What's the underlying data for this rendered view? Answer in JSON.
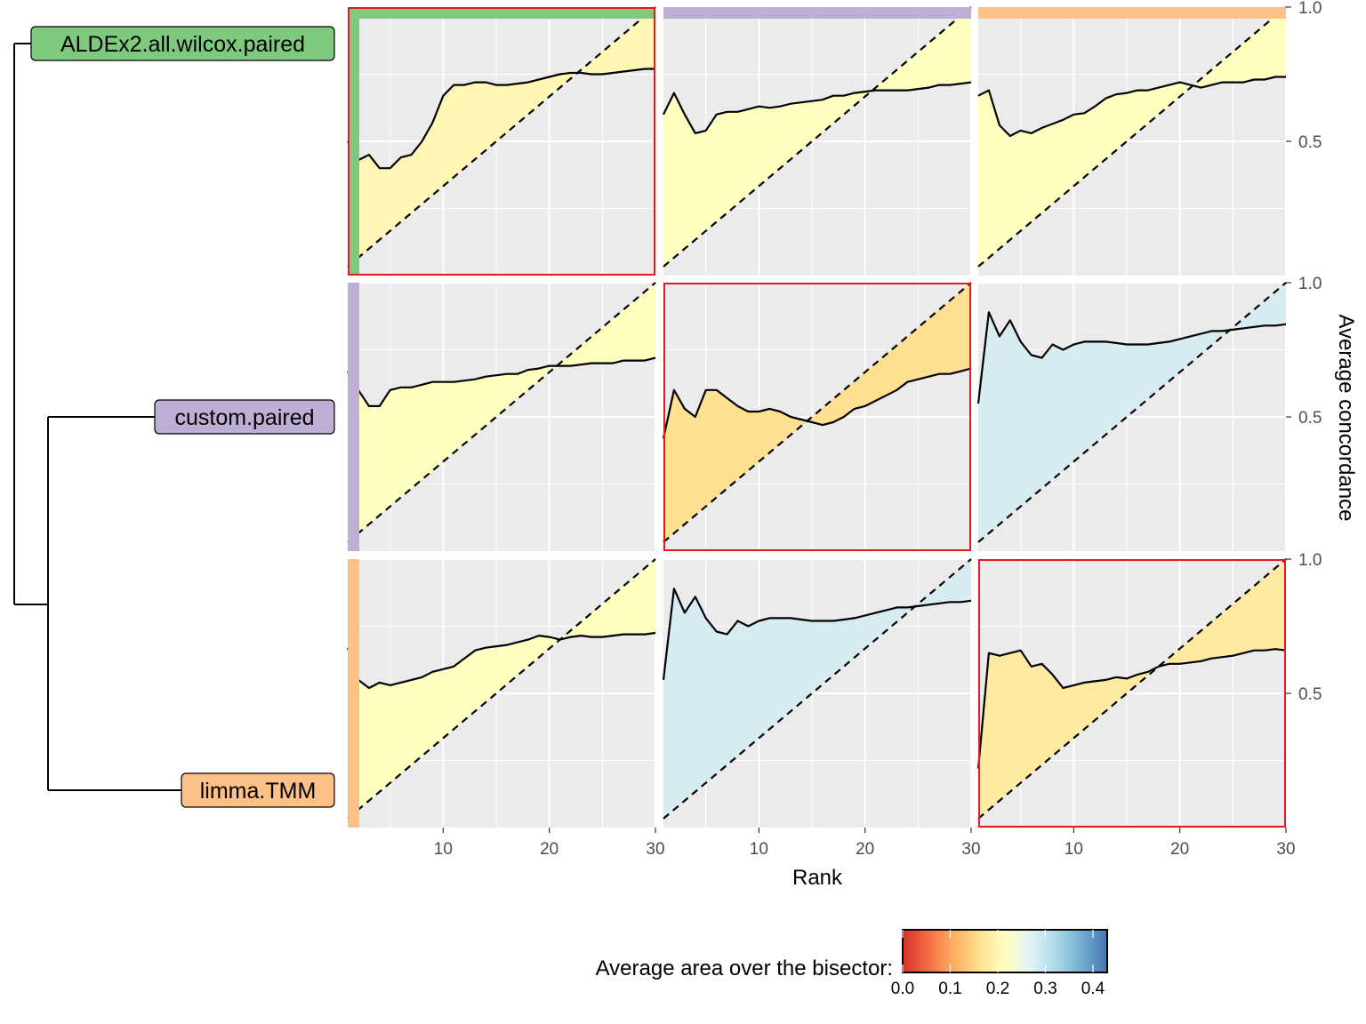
{
  "chart_data": {
    "type": "area",
    "title": "",
    "xlabel": "Rank",
    "ylabel": "Average concordance",
    "x_ticks": [
      10,
      20,
      30
    ],
    "y_ticks": [
      "0.5",
      "1.0"
    ],
    "xlim": [
      1,
      30
    ],
    "ylim": [
      0,
      1
    ],
    "grid": true,
    "y_axis_side": "right",
    "methods": [
      {
        "name": "ALDEx2.all.wilcox.paired",
        "color": "#7fc97f"
      },
      {
        "name": "custom.paired",
        "color": "#beaed4"
      },
      {
        "name": "limma.TMM",
        "color": "#fdc086"
      }
    ],
    "dendrogram": "custom.paired and limma.TMM cluster first, then join ALDEx2.all.wilcox.paired",
    "reference_line": "bisector y = x / 30 (dashed)",
    "panels": [
      {
        "row": 0,
        "col": 0,
        "diagonal": true,
        "fill": "#fff7b3",
        "y": [
          0.5,
          0.43,
          0.45,
          0.4,
          0.4,
          0.44,
          0.45,
          0.5,
          0.57,
          0.67,
          0.71,
          0.71,
          0.72,
          0.72,
          0.71,
          0.71,
          0.715,
          0.72,
          0.73,
          0.74,
          0.75,
          0.755,
          0.755,
          0.75,
          0.75,
          0.755,
          0.76,
          0.765,
          0.77,
          0.77
        ]
      },
      {
        "row": 0,
        "col": 1,
        "diagonal": false,
        "fill": "#ffffbf",
        "y": [
          0.6,
          0.68,
          0.6,
          0.53,
          0.54,
          0.6,
          0.61,
          0.61,
          0.62,
          0.63,
          0.625,
          0.63,
          0.64,
          0.645,
          0.65,
          0.655,
          0.67,
          0.67,
          0.68,
          0.685,
          0.69,
          0.69,
          0.69,
          0.69,
          0.695,
          0.7,
          0.71,
          0.71,
          0.715,
          0.72
        ]
      },
      {
        "row": 0,
        "col": 2,
        "diagonal": false,
        "fill": "#ffffbf",
        "y": [
          0.67,
          0.69,
          0.56,
          0.52,
          0.54,
          0.53,
          0.55,
          0.565,
          0.58,
          0.6,
          0.605,
          0.63,
          0.66,
          0.675,
          0.68,
          0.69,
          0.69,
          0.7,
          0.71,
          0.72,
          0.71,
          0.7,
          0.71,
          0.72,
          0.72,
          0.72,
          0.73,
          0.73,
          0.74,
          0.74
        ]
      },
      {
        "row": 1,
        "col": 0,
        "diagonal": false,
        "fill": "#ffffbf",
        "y": [
          0.67,
          0.6,
          0.54,
          0.54,
          0.6,
          0.61,
          0.61,
          0.62,
          0.63,
          0.63,
          0.63,
          0.635,
          0.64,
          0.65,
          0.655,
          0.66,
          0.66,
          0.675,
          0.68,
          0.69,
          0.69,
          0.69,
          0.695,
          0.7,
          0.7,
          0.7,
          0.71,
          0.71,
          0.71,
          0.72
        ]
      },
      {
        "row": 1,
        "col": 1,
        "diagonal": true,
        "fill": "#fee090",
        "y": [
          0.42,
          0.6,
          0.53,
          0.5,
          0.6,
          0.6,
          0.57,
          0.54,
          0.52,
          0.52,
          0.53,
          0.52,
          0.5,
          0.49,
          0.48,
          0.47,
          0.48,
          0.5,
          0.53,
          0.54,
          0.56,
          0.58,
          0.6,
          0.63,
          0.64,
          0.65,
          0.66,
          0.66,
          0.67,
          0.68
        ]
      },
      {
        "row": 1,
        "col": 2,
        "diagonal": false,
        "fill": "#d6ebf2",
        "y": [
          0.55,
          0.89,
          0.8,
          0.86,
          0.78,
          0.73,
          0.72,
          0.77,
          0.75,
          0.77,
          0.78,
          0.78,
          0.78,
          0.775,
          0.77,
          0.77,
          0.77,
          0.775,
          0.78,
          0.79,
          0.8,
          0.81,
          0.82,
          0.82,
          0.825,
          0.83,
          0.835,
          0.84,
          0.84,
          0.845
        ]
      },
      {
        "row": 2,
        "col": 0,
        "diagonal": false,
        "fill": "#ffffbf",
        "y": [
          0.67,
          0.55,
          0.52,
          0.54,
          0.53,
          0.54,
          0.55,
          0.56,
          0.58,
          0.59,
          0.6,
          0.63,
          0.66,
          0.67,
          0.675,
          0.68,
          0.69,
          0.7,
          0.715,
          0.71,
          0.7,
          0.71,
          0.715,
          0.71,
          0.71,
          0.715,
          0.72,
          0.72,
          0.72,
          0.725
        ]
      },
      {
        "row": 2,
        "col": 1,
        "diagonal": false,
        "fill": "#d6ebf2",
        "y": [
          0.55,
          0.89,
          0.8,
          0.86,
          0.78,
          0.73,
          0.72,
          0.77,
          0.75,
          0.77,
          0.78,
          0.78,
          0.78,
          0.775,
          0.77,
          0.77,
          0.77,
          0.775,
          0.78,
          0.79,
          0.8,
          0.81,
          0.82,
          0.82,
          0.825,
          0.83,
          0.835,
          0.84,
          0.84,
          0.845
        ]
      },
      {
        "row": 2,
        "col": 2,
        "diagonal": true,
        "fill": "#fee9a0",
        "y": [
          0.22,
          0.65,
          0.64,
          0.65,
          0.66,
          0.6,
          0.61,
          0.57,
          0.52,
          0.53,
          0.54,
          0.545,
          0.55,
          0.56,
          0.555,
          0.57,
          0.58,
          0.6,
          0.61,
          0.61,
          0.615,
          0.62,
          0.63,
          0.635,
          0.64,
          0.65,
          0.66,
          0.66,
          0.665,
          0.66
        ]
      }
    ],
    "legend": {
      "title": "Average area over the bisector:",
      "position": "bottom",
      "ticks": [
        "0.0",
        "0.1",
        "0.2",
        "0.3",
        "0.4"
      ],
      "range": [
        0,
        0.43
      ],
      "colors": [
        "#d73027",
        "#f46d43",
        "#fdae61",
        "#fee090",
        "#ffffbf",
        "#e0f3f8",
        "#abd9e9",
        "#74add1",
        "#4575b4"
      ]
    }
  }
}
